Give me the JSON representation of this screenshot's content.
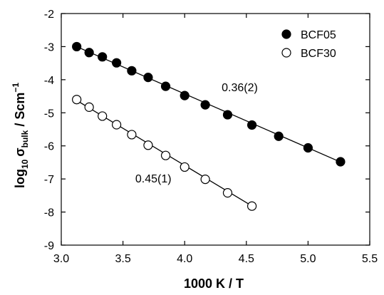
{
  "chart_data": {
    "type": "scatter",
    "xlabel": "1000 K / T",
    "ylabel": {
      "prefix": "log",
      "prefix_sub": "10",
      "symbol": "σ",
      "symbol_sub": "bulk",
      "unit_sep": " / ",
      "unit": "Scm",
      "unit_sup": "−1"
    },
    "xlim": [
      3.0,
      5.5
    ],
    "ylim": [
      -9,
      -2
    ],
    "xticks": [
      3.0,
      3.5,
      4.0,
      4.5,
      5.0,
      5.5
    ],
    "xtick_labels": [
      "3.0",
      "3.5",
      "4.0",
      "4.5",
      "5.0",
      "5.5"
    ],
    "yticks": [
      -9,
      -8,
      -7,
      -6,
      -5,
      -4,
      -3,
      -2
    ],
    "ytick_labels": [
      "-9",
      "-8",
      "-7",
      "-6",
      "-5",
      "-4",
      "-3",
      "-2"
    ],
    "grid": false,
    "legend_position": "top-right",
    "series": [
      {
        "name": "BCF05",
        "marker": "filled-circle",
        "color": "#000000",
        "x": [
          3.125,
          3.226,
          3.333,
          3.448,
          3.571,
          3.704,
          3.846,
          4.0,
          4.167,
          4.348,
          4.545,
          4.762,
          5.0,
          5.263
        ],
        "y": [
          -3.0,
          -3.18,
          -3.31,
          -3.49,
          -3.73,
          -3.93,
          -4.2,
          -4.48,
          -4.76,
          -5.06,
          -5.37,
          -5.71,
          -6.06,
          -6.48
        ],
        "fit": {
          "x": [
            3.1,
            5.27
          ],
          "y": [
            -2.96,
            -6.5
          ]
        },
        "annotation": {
          "text": "0.36(2)",
          "x": 4.3,
          "y": -4.35
        }
      },
      {
        "name": "BCF30",
        "marker": "open-circle",
        "color": "#000000",
        "x": [
          3.125,
          3.226,
          3.333,
          3.448,
          3.571,
          3.704,
          3.846,
          4.0,
          4.167,
          4.348,
          4.545
        ],
        "y": [
          -4.6,
          -4.83,
          -5.1,
          -5.36,
          -5.66,
          -5.98,
          -6.29,
          -6.64,
          -7.01,
          -7.42,
          -7.82
        ],
        "fit": {
          "x": [
            3.1,
            4.56
          ],
          "y": [
            -4.57,
            -7.85
          ]
        },
        "annotation": {
          "text": "0.45(1)",
          "x": 3.6,
          "y": -7.1
        }
      }
    ]
  }
}
